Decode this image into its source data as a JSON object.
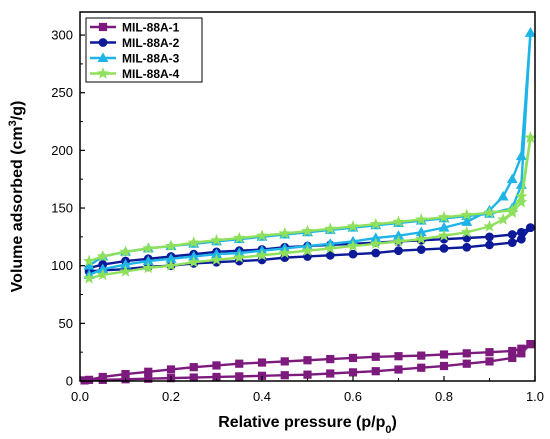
{
  "chart_data": {
    "type": "line",
    "xlabel": "Relative pressure (p/p",
    "xlabel_sub": "0",
    "xlabel_tail": ")",
    "ylabel": "Volume adsorbed (cm",
    "ylabel_sup": "3",
    "ylabel_tail": "/g)",
    "xlim": [
      0.0,
      1.0
    ],
    "ylim": [
      0,
      320
    ],
    "xticks": [
      "0.0",
      "0.2",
      "0.4",
      "0.6",
      "0.8",
      "1.0"
    ],
    "yticks": [
      "0",
      "50",
      "100",
      "150",
      "200",
      "250",
      "300"
    ],
    "legend_position": "top-left",
    "grid": false,
    "series": [
      {
        "name": "MIL-88A-1",
        "color": "#7d1a7d",
        "marker": "square",
        "adsorption": {
          "x": [
            0.01,
            0.05,
            0.1,
            0.15,
            0.2,
            0.25,
            0.3,
            0.35,
            0.4,
            0.45,
            0.5,
            0.55,
            0.6,
            0.65,
            0.7,
            0.75,
            0.8,
            0.85,
            0.9,
            0.95,
            0.97,
            0.99
          ],
          "y": [
            0.5,
            1.0,
            1.5,
            2.0,
            2.5,
            3.0,
            3.5,
            4.0,
            4.5,
            5.0,
            5.5,
            6.5,
            7.5,
            8.5,
            10,
            11.5,
            13,
            15,
            17,
            20,
            24,
            32
          ]
        },
        "desorption": {
          "x": [
            0.99,
            0.97,
            0.95,
            0.9,
            0.85,
            0.8,
            0.75,
            0.7,
            0.65,
            0.6,
            0.55,
            0.5,
            0.45,
            0.4,
            0.35,
            0.3,
            0.25,
            0.2,
            0.15,
            0.1,
            0.05,
            0.02
          ],
          "y": [
            32,
            28,
            26,
            25,
            24,
            23,
            22,
            21.5,
            21,
            20,
            19,
            18,
            17,
            16,
            15,
            13.5,
            12,
            10,
            8,
            6,
            3.5,
            1
          ]
        }
      },
      {
        "name": "MIL-88A-2",
        "color": "#0c1a99",
        "marker": "circle",
        "adsorption": {
          "x": [
            0.02,
            0.05,
            0.1,
            0.15,
            0.2,
            0.25,
            0.3,
            0.35,
            0.4,
            0.45,
            0.5,
            0.55,
            0.6,
            0.65,
            0.7,
            0.75,
            0.8,
            0.85,
            0.9,
            0.95,
            0.97,
            0.99
          ],
          "y": [
            95,
            96,
            97,
            99,
            100,
            102,
            103,
            104,
            105,
            107,
            108,
            109,
            110,
            111,
            113,
            114,
            115,
            116,
            118,
            120,
            123,
            133
          ]
        },
        "desorption": {
          "x": [
            0.99,
            0.97,
            0.95,
            0.9,
            0.85,
            0.8,
            0.75,
            0.7,
            0.65,
            0.6,
            0.55,
            0.5,
            0.45,
            0.4,
            0.35,
            0.3,
            0.25,
            0.2,
            0.15,
            0.1,
            0.05,
            0.02
          ],
          "y": [
            133,
            129,
            127,
            125,
            124,
            123,
            122,
            121,
            120,
            119,
            118,
            117,
            116,
            114,
            113,
            112,
            110,
            108,
            106,
            104,
            101,
            98
          ]
        }
      },
      {
        "name": "MIL-88A-3",
        "color": "#1fb4e8",
        "marker": "triangle",
        "adsorption": {
          "x": [
            0.02,
            0.05,
            0.1,
            0.15,
            0.2,
            0.25,
            0.3,
            0.35,
            0.4,
            0.45,
            0.5,
            0.55,
            0.6,
            0.65,
            0.7,
            0.75,
            0.8,
            0.85,
            0.9,
            0.93,
            0.95,
            0.97,
            0.99
          ],
          "y": [
            92,
            97,
            101,
            104,
            106,
            108,
            110,
            111,
            113,
            115,
            117,
            119,
            121,
            124,
            126,
            129,
            133,
            138,
            148,
            160,
            175,
            195,
            302
          ]
        },
        "desorption": {
          "x": [
            0.99,
            0.97,
            0.95,
            0.9,
            0.85,
            0.8,
            0.75,
            0.7,
            0.65,
            0.6,
            0.55,
            0.5,
            0.45,
            0.4,
            0.35,
            0.3,
            0.25,
            0.2,
            0.15,
            0.1,
            0.05,
            0.02
          ],
          "y": [
            302,
            170,
            150,
            145,
            143,
            141,
            139,
            137,
            135,
            133,
            131,
            129,
            127,
            125,
            123,
            121,
            119,
            117,
            115,
            112,
            108,
            100
          ]
        }
      },
      {
        "name": "MIL-88A-4",
        "color": "#8fe05a",
        "marker": "star",
        "adsorption": {
          "x": [
            0.02,
            0.05,
            0.1,
            0.15,
            0.2,
            0.25,
            0.3,
            0.35,
            0.4,
            0.45,
            0.5,
            0.55,
            0.6,
            0.65,
            0.7,
            0.75,
            0.8,
            0.85,
            0.9,
            0.93,
            0.95,
            0.97,
            0.99
          ],
          "y": [
            89,
            92,
            95,
            98,
            100,
            103,
            105,
            107,
            109,
            111,
            113,
            115,
            117,
            119,
            121,
            123,
            126,
            129,
            134,
            140,
            146,
            155,
            211
          ]
        },
        "desorption": {
          "x": [
            0.99,
            0.97,
            0.95,
            0.9,
            0.85,
            0.8,
            0.75,
            0.7,
            0.65,
            0.6,
            0.55,
            0.5,
            0.45,
            0.4,
            0.35,
            0.3,
            0.25,
            0.2,
            0.15,
            0.1,
            0.05,
            0.02
          ],
          "y": [
            211,
            160,
            148,
            146,
            144,
            142,
            140,
            138,
            136,
            134,
            132,
            130,
            128,
            126,
            124,
            122,
            120,
            117,
            115,
            112,
            108,
            104
          ]
        }
      }
    ]
  }
}
